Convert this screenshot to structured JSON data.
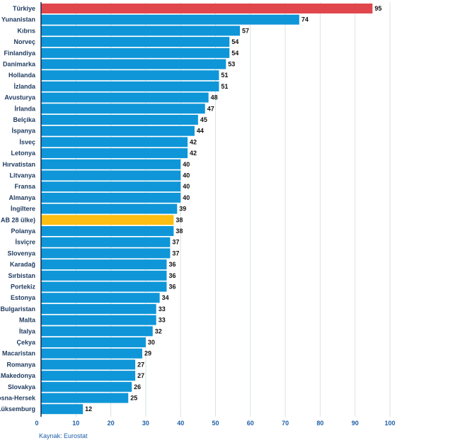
{
  "chart_data": {
    "type": "bar",
    "orientation": "horizontal",
    "categories": [
      "Türkiye",
      "Yunanistan",
      "Kıbrıs",
      "Norveç",
      "Finlandiya",
      "Danimarka",
      "Hollanda",
      "İzlanda",
      "Avusturya",
      "İrlanda",
      "Belçika",
      "İspanya",
      "İsveç",
      "Letonya",
      "Hırvatistan",
      "Litvanya",
      "Fransa",
      "Almanya",
      "İngiltere",
      "AB 28 ülke)",
      "Polanya",
      "İsviçre",
      "Slovenya",
      "Karadağ",
      "Sırbistan",
      "Portekiz",
      "Estonya",
      "Bulgaristan",
      "Malta",
      "İtalya",
      "Çekya",
      "Macaristan",
      "Romanya",
      "K.Makedonya",
      "Slovakya",
      "Bosna-Hersek",
      "Lüksemburg"
    ],
    "values": [
      95,
      74,
      57,
      54,
      54,
      53,
      51,
      51,
      48,
      47,
      45,
      44,
      42,
      42,
      40,
      40,
      40,
      40,
      39,
      38,
      38,
      37,
      37,
      36,
      36,
      36,
      34,
      33,
      33,
      32,
      30,
      29,
      27,
      27,
      26,
      25,
      12
    ],
    "highlight": {
      "Türkiye": "#e0474c",
      "AB 28 ülke)": "#fdbe13"
    },
    "bar_color": "#0e96d8",
    "xlim": [
      0,
      100
    ],
    "xticks": [
      0,
      10,
      20,
      30,
      40,
      50,
      60,
      70,
      80,
      90,
      100
    ],
    "grid": true,
    "title": "",
    "xlabel": "",
    "ylabel": ""
  },
  "source_text": "Kaynak: Eurostat"
}
